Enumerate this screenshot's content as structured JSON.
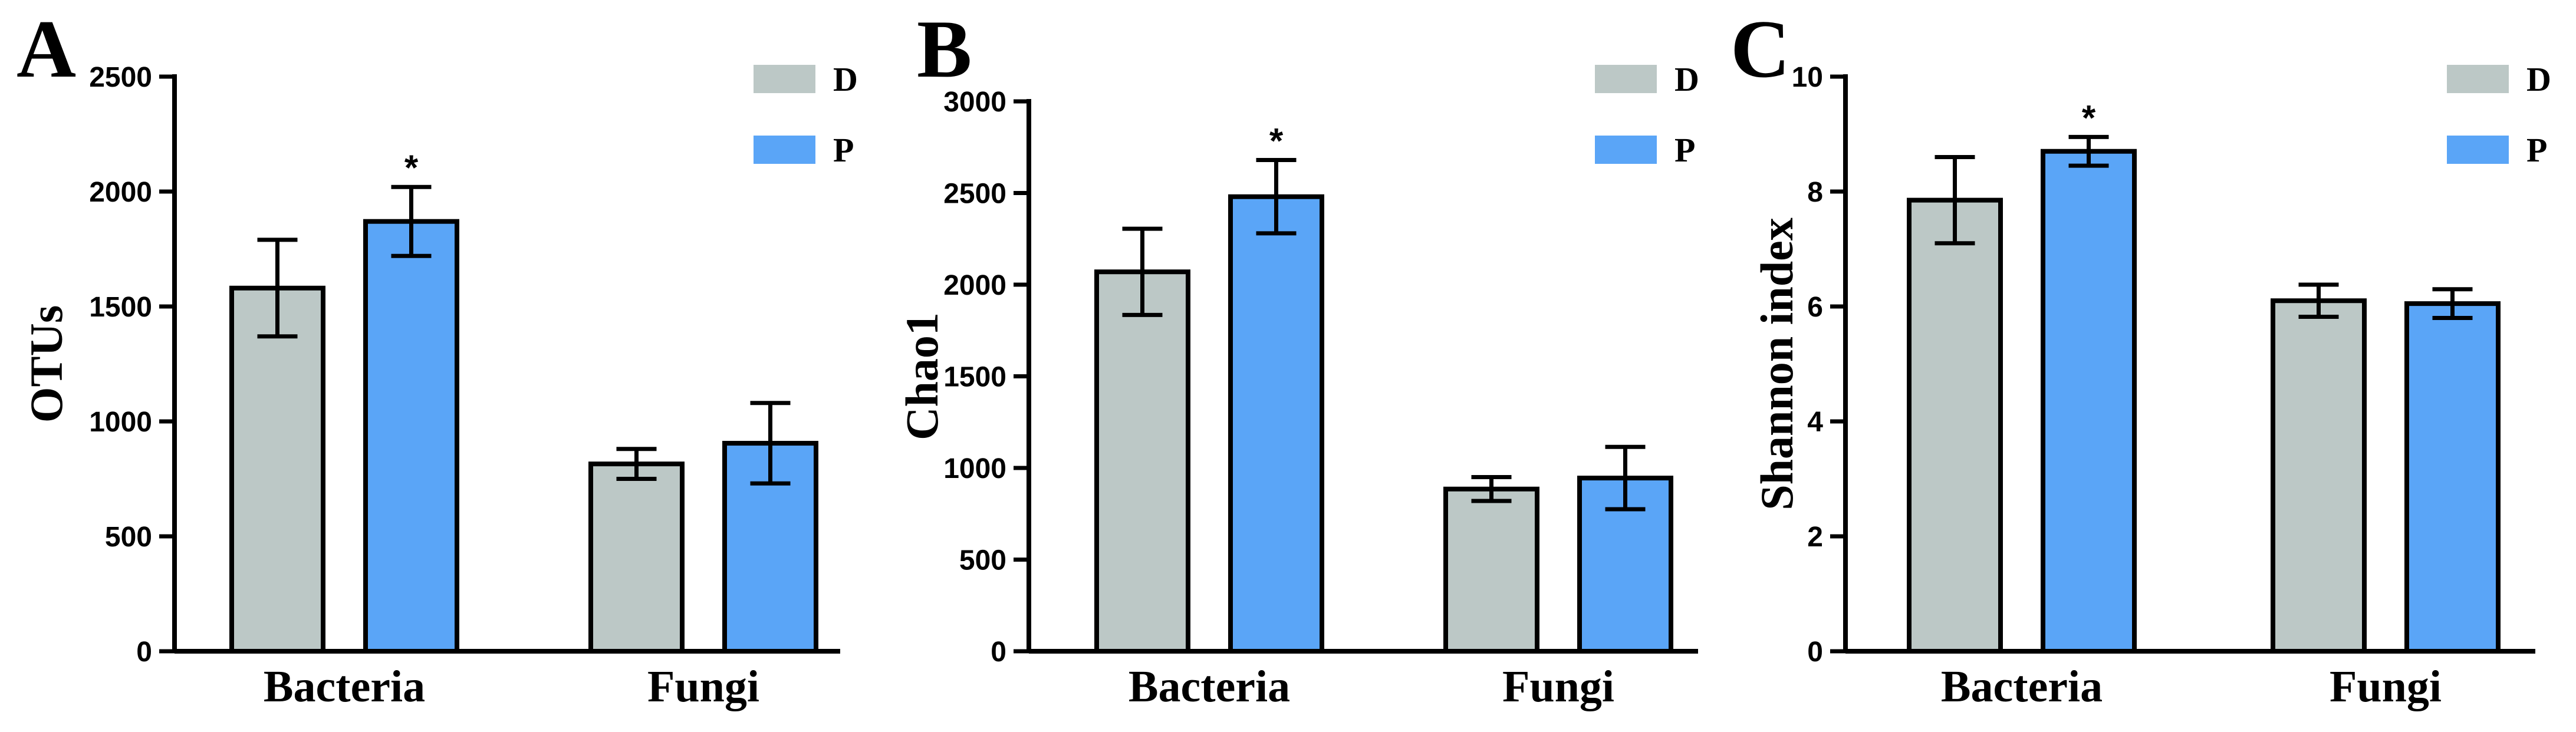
{
  "colors": {
    "D": "#bcc8c6",
    "P": "#5aa5f7"
  },
  "chart_data": [
    {
      "type": "bar",
      "panel": "A",
      "ylabel": "OTUs",
      "ylim": [
        0,
        2500
      ],
      "yticks": [
        0,
        500,
        1000,
        1500,
        2000,
        2500
      ],
      "categories": [
        "Bacteria",
        "Fungi"
      ],
      "legend": [
        "D",
        "P"
      ],
      "legend_position": "top-right",
      "series": [
        {
          "name": "D",
          "values": [
            1580,
            815
          ],
          "errors": [
            210,
            65
          ]
        },
        {
          "name": "P",
          "values": [
            1870,
            905
          ],
          "errors": [
            150,
            175
          ]
        }
      ],
      "annotations": [
        {
          "category": "Bacteria",
          "series": "P",
          "text": "*"
        }
      ]
    },
    {
      "type": "bar",
      "panel": "B",
      "ylabel": "Chao1",
      "ylim": [
        0,
        3000
      ],
      "yticks": [
        0,
        500,
        1000,
        1500,
        2000,
        2500,
        3000
      ],
      "categories": [
        "Bacteria",
        "Fungi"
      ],
      "legend": [
        "D",
        "P"
      ],
      "legend_position": "top-right",
      "series": [
        {
          "name": "D",
          "values": [
            2070,
            885
          ],
          "errors": [
            235,
            65
          ]
        },
        {
          "name": "P",
          "values": [
            2480,
            945
          ],
          "errors": [
            200,
            170
          ]
        }
      ],
      "annotations": [
        {
          "category": "Bacteria",
          "series": "P",
          "text": "*"
        }
      ]
    },
    {
      "type": "bar",
      "panel": "C",
      "ylabel": "Shannon index",
      "ylim": [
        0,
        10
      ],
      "yticks": [
        0,
        2,
        4,
        6,
        8,
        10
      ],
      "categories": [
        "Bacteria",
        "Fungi"
      ],
      "legend": [
        "D",
        "P"
      ],
      "legend_position": "top-right",
      "series": [
        {
          "name": "D",
          "values": [
            7.85,
            6.1
          ],
          "errors": [
            0.75,
            0.28
          ]
        },
        {
          "name": "P",
          "values": [
            8.7,
            6.05
          ],
          "errors": [
            0.25,
            0.25
          ]
        }
      ],
      "annotations": [
        {
          "category": "Bacteria",
          "series": "P",
          "text": "*"
        }
      ]
    }
  ]
}
